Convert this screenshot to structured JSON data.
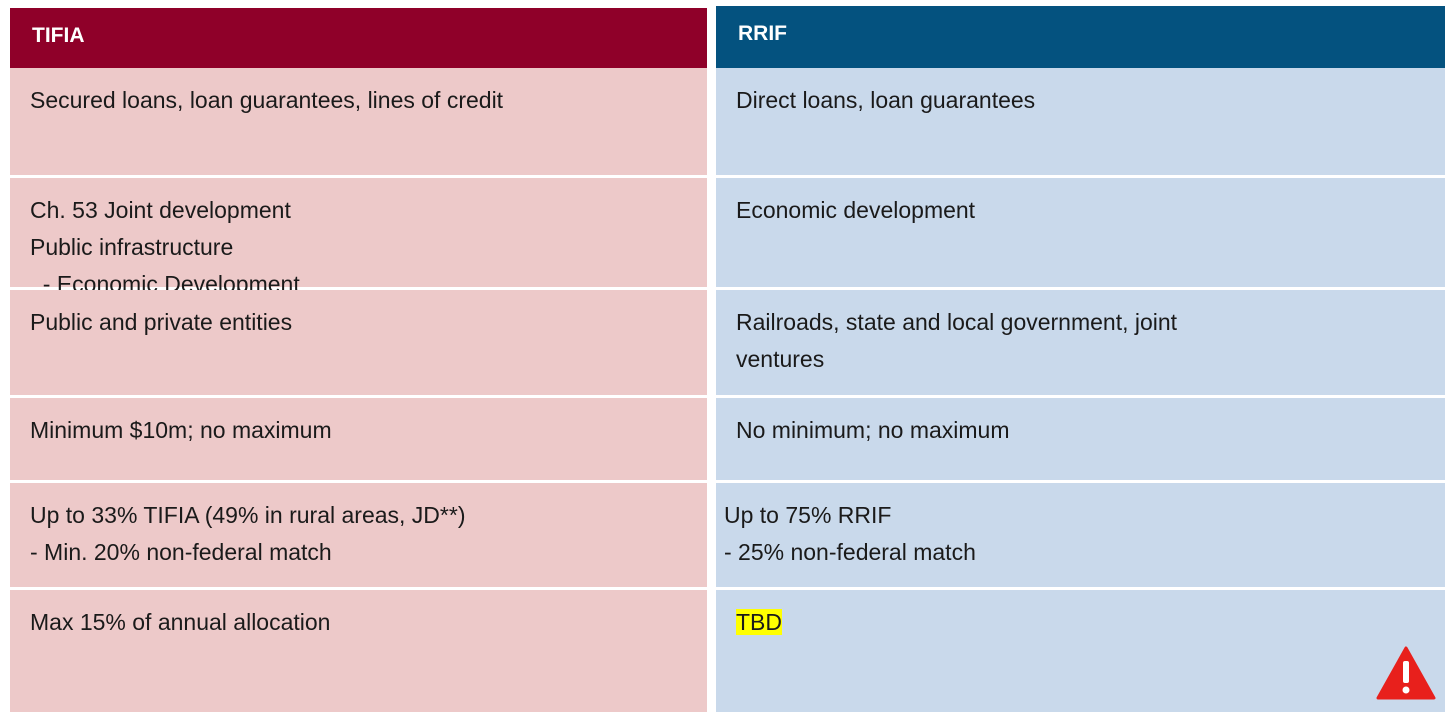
{
  "table": {
    "headers": [
      "TIFIA",
      "RRIF"
    ],
    "rows": [
      [
        [
          "Secured loans, loan guarantees, lines of credit"
        ],
        [
          "Direct loans, loan guarantees"
        ]
      ],
      [
        [
          "Ch. 53 Joint development",
          "Public infrastructure",
          "  - Economic Development"
        ],
        [
          "Economic development"
        ]
      ],
      [
        [
          "Public and private entities"
        ],
        [
          "Railroads, state and local government, joint",
          "ventures"
        ]
      ],
      [
        [
          "Minimum $10m; no maximum"
        ],
        [
          "No minimum; no maximum"
        ]
      ],
      [
        [
          "Up to 33% TIFIA (49% in rural areas, JD**)",
          "- Min. 20% non-federal match"
        ],
        [
          "Up to 75% RRIF",
          "- 25% non-federal match"
        ]
      ],
      [
        [
          "Max 15% of annual allocation"
        ],
        [
          "TBD"
        ]
      ]
    ]
  }
}
